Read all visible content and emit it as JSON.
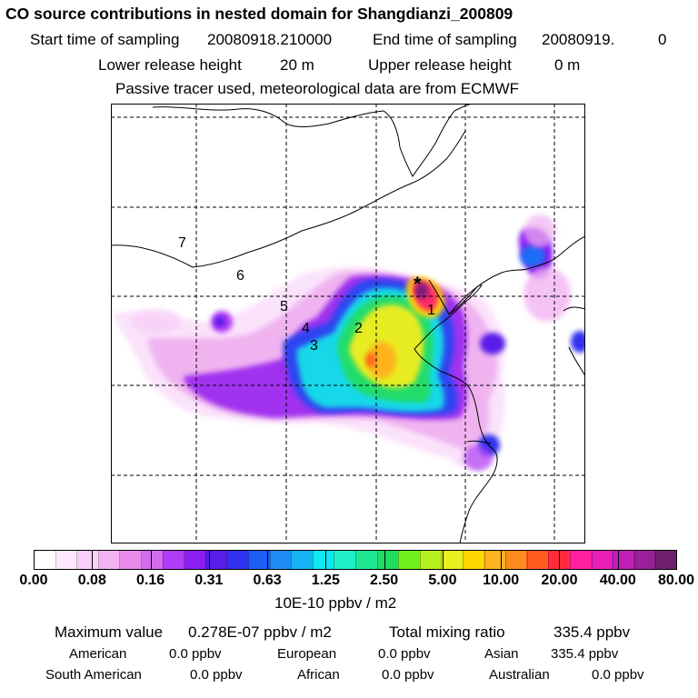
{
  "header": {
    "title": "CO  source contributions in nested domain for Shangdianzi_200809",
    "start_label": "Start time of sampling",
    "start_value": "20080918.210000",
    "end_label": "End time of sampling",
    "end_value": "20080919.",
    "end_value_suffix": "0",
    "lower_label": "Lower release height",
    "lower_value": "20 m",
    "upper_label": "Upper release height",
    "upper_value": "0 m",
    "tracer_note": "Passive tracer used, meteorological data are from ECMWF"
  },
  "map": {
    "region_labels": [
      "1",
      "2",
      "3",
      "4",
      "5",
      "6",
      "7"
    ],
    "receptor_marker": "*"
  },
  "colorbar": {
    "colors": [
      "#ffffff",
      "#fde8fd",
      "#f8d0f8",
      "#f2b5f2",
      "#e98ae9",
      "#d46cf0",
      "#b23cf5",
      "#8a1ff0",
      "#5a1ce8",
      "#3030f0",
      "#1f5df5",
      "#1f8cf5",
      "#16b3f5",
      "#10e8f0",
      "#1ff0c8",
      "#1fe895",
      "#20dc5f",
      "#6ef01f",
      "#b8f01f",
      "#e8f01f",
      "#ffd700",
      "#ffb21f",
      "#ff8a1f",
      "#ff5a1f",
      "#ff2a3a",
      "#ff1fa0",
      "#e81fb8",
      "#c21fb8",
      "#9a1f9a",
      "#6e1f6e"
    ],
    "tick_labels": [
      "0.00",
      "0.08",
      "0.16",
      "0.31",
      "0.63",
      "1.25",
      "2.50",
      "5.00",
      "10.00",
      "20.00",
      "40.00",
      "80.00"
    ],
    "units": "10E-10 ppbv / m2"
  },
  "stats": {
    "max_label": "Maximum value",
    "max_value": "0.278E-07 ppbv / m2",
    "total_label": "Total mixing ratio",
    "total_value": "335.4 ppbv",
    "american_label": "American",
    "american_value": "0.0 ppbv",
    "european_label": "European",
    "european_value": "0.0 ppbv",
    "asian_label": "Asian",
    "asian_value": "335.4 ppbv",
    "south_american_label": "South American",
    "south_american_value": "0.0 ppbv",
    "african_label": "African",
    "african_value": "0.0 ppbv",
    "australian_label": "Australian",
    "australian_value": "0.0 ppbv"
  }
}
